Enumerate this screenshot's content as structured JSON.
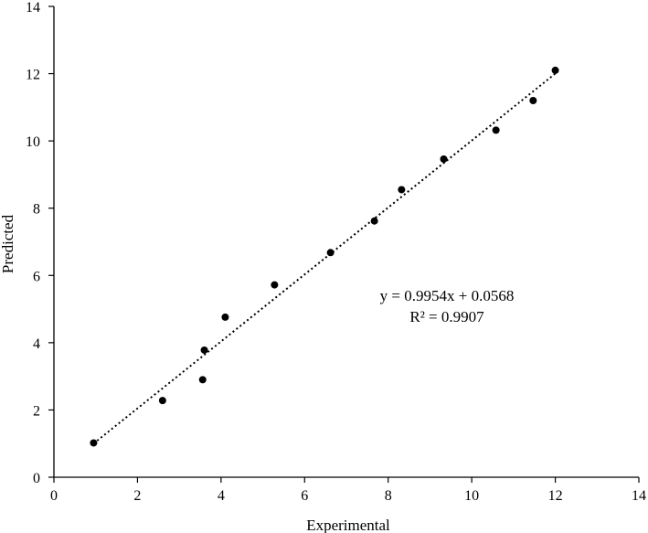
{
  "chart_data": {
    "type": "scatter",
    "xlabel": "Experimental",
    "ylabel": "Predicted",
    "xlim": [
      0,
      14
    ],
    "ylim": [
      0,
      14
    ],
    "xticks": [
      "0",
      "2",
      "4",
      "6",
      "8",
      "10",
      "12",
      "14"
    ],
    "yticks": [
      "0",
      "2",
      "4",
      "6",
      "8",
      "10",
      "12",
      "14"
    ],
    "grid": false,
    "legend": "none",
    "series": [
      {
        "points": [
          {
            "x": 0.95,
            "y": 1.02
          },
          {
            "x": 2.6,
            "y": 2.28
          },
          {
            "x": 3.56,
            "y": 2.9
          },
          {
            "x": 3.6,
            "y": 3.78
          },
          {
            "x": 4.1,
            "y": 4.76
          },
          {
            "x": 5.28,
            "y": 5.72
          },
          {
            "x": 6.62,
            "y": 6.68
          },
          {
            "x": 7.67,
            "y": 7.62
          },
          {
            "x": 8.32,
            "y": 8.55
          },
          {
            "x": 9.33,
            "y": 9.46
          },
          {
            "x": 10.58,
            "y": 10.32
          },
          {
            "x": 11.47,
            "y": 11.2
          },
          {
            "x": 12.0,
            "y": 12.1
          }
        ]
      }
    ],
    "trendline": {
      "slope": 0.9954,
      "intercept": 0.0568,
      "x_range": [
        0.95,
        12.0
      ],
      "style": "dotted"
    },
    "annotation": {
      "equation": "y = 0.9954x + 0.0568",
      "r_squared": "R² = 0.9907"
    },
    "colors": {
      "marker": "#000000",
      "line": "#000000",
      "axis": "#000000"
    }
  }
}
